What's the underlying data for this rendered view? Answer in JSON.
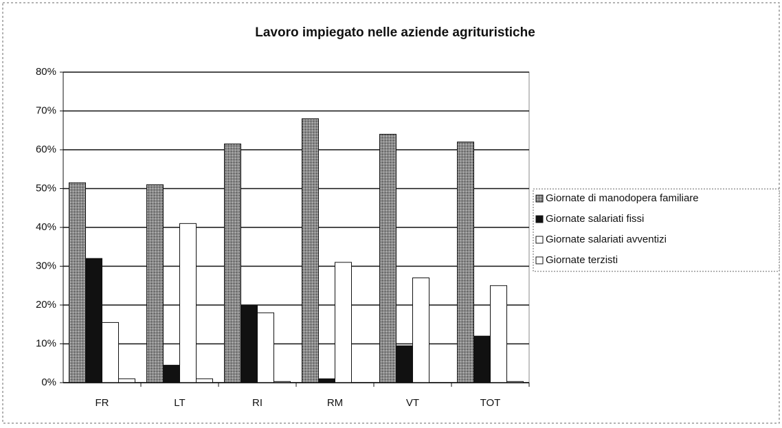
{
  "chart_data": {
    "type": "bar",
    "title": "Lavoro impiegato nelle aziende agrituristiche",
    "categories": [
      "FR",
      "LT",
      "RI",
      "RM",
      "VT",
      "TOT"
    ],
    "series": [
      {
        "name": "Giornate di manodopera familiare",
        "color": "#8a8a8a",
        "values": [
          51.5,
          51,
          61.5,
          68,
          64,
          62
        ]
      },
      {
        "name": "Giornate salariati fissi",
        "color": "#111111",
        "values": [
          32,
          4.5,
          20,
          1,
          9.5,
          12
        ]
      },
      {
        "name": "Giornate salariati avventizi",
        "color": "#ffffff",
        "values": [
          15.5,
          41,
          18,
          31,
          27,
          25
        ]
      },
      {
        "name": "Giornate terzisti",
        "color": "#ffffff",
        "values": [
          1,
          1,
          0.3,
          0,
          0,
          0.3
        ]
      }
    ],
    "ylim": [
      0,
      80
    ],
    "yticks": [
      {
        "value": 0,
        "label": "0%"
      },
      {
        "value": 10,
        "label": "10%"
      },
      {
        "value": 20,
        "label": "20%"
      },
      {
        "value": 30,
        "label": "30%"
      },
      {
        "value": 40,
        "label": "40%"
      },
      {
        "value": 50,
        "label": "50%"
      },
      {
        "value": 60,
        "label": "60%"
      },
      {
        "value": 70,
        "label": "70%"
      },
      {
        "value": 80,
        "label": "80%"
      }
    ],
    "grid": true,
    "legend": "right"
  }
}
